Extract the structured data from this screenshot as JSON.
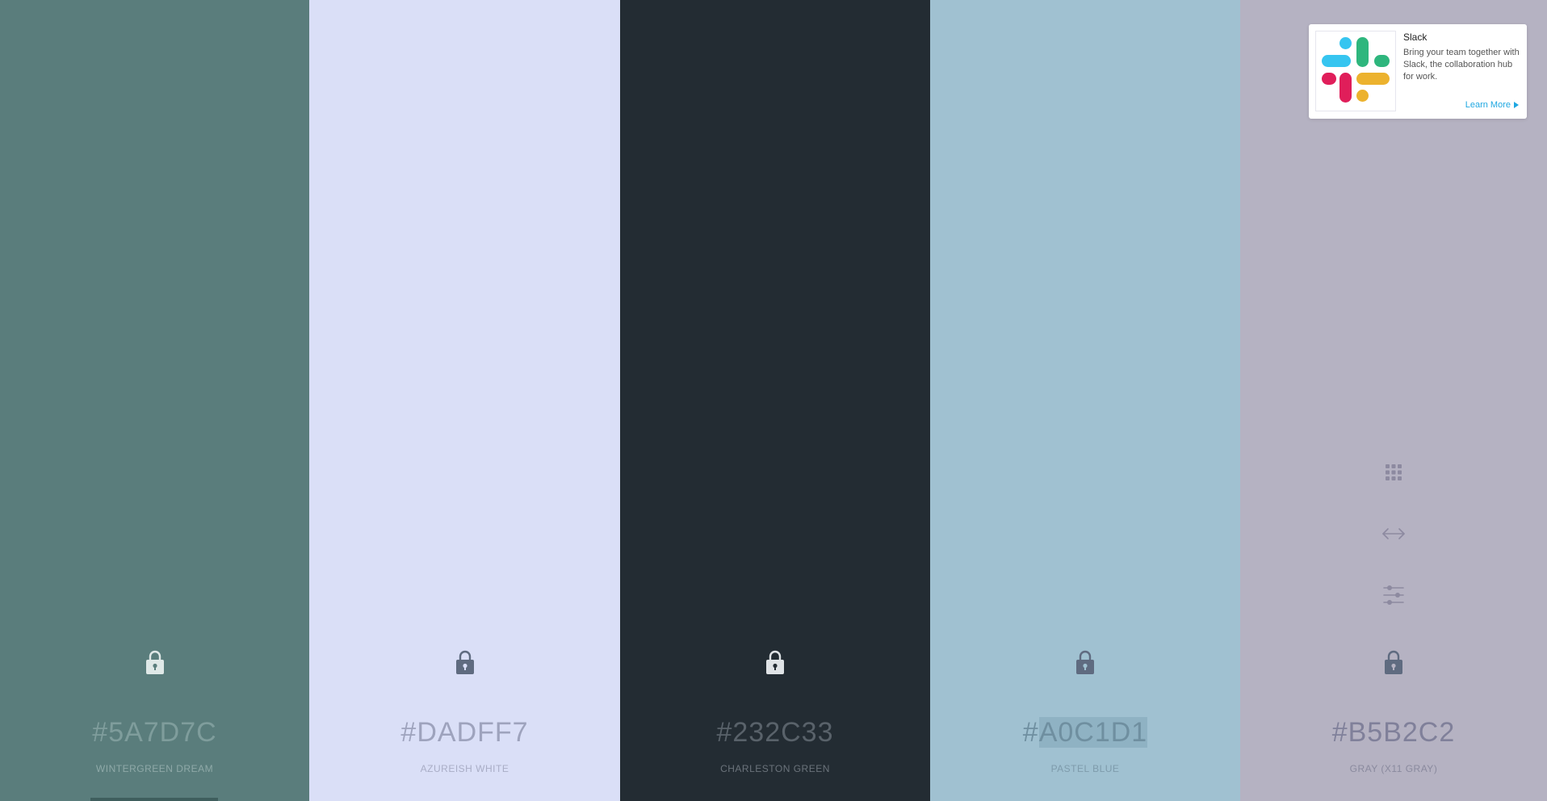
{
  "palette": [
    {
      "hex": "#5A7D7C",
      "hex_prefix": "#",
      "hex_body": "5A7D7C",
      "name": "WINTERGREEN DREAM",
      "bg": "#5A7D7C",
      "text_color": "#7f9d9c",
      "name_color": "#8fa9a8",
      "lock_color": "#dfe8e7"
    },
    {
      "hex": "#DADFF7",
      "hex_prefix": "#",
      "hex_body": "DADFF7",
      "name": "AZUREISH WHITE",
      "bg": "#DADFF7",
      "text_color": "#9ea3bd",
      "name_color": "#a9adc6",
      "lock_color": "#5f6b80"
    },
    {
      "hex": "#232C33",
      "hex_prefix": "#",
      "hex_body": "232C33",
      "name": "CHARLESTON GREEN",
      "bg": "#232C33",
      "text_color": "#59626a",
      "name_color": "#6b737b",
      "lock_color": "#dfe3e6"
    },
    {
      "hex": "#A0C1D1",
      "hex_prefix": "#",
      "hex_body": "A0C1D1",
      "name": "PASTEL BLUE",
      "bg": "#A0C1D1",
      "text_color": "#6f8fa0",
      "name_color": "#7e9bab",
      "lock_color": "#5f6b80",
      "selected": true,
      "selection_bg": "#8fb2c3"
    },
    {
      "hex": "#B5B2C2",
      "hex_prefix": "#",
      "hex_body": "B5B2C2",
      "name": "GRAY (X11 GRAY)",
      "bg": "#B5B2C2",
      "text_color": "#80809a",
      "name_color": "#8a8a9e",
      "lock_color": "#5f6b80"
    }
  ],
  "tools": {
    "icons": [
      "grid-icon",
      "arrows-horizontal-icon",
      "sliders-icon"
    ],
    "color": "#8d8aa0"
  },
  "ad": {
    "title": "Slack",
    "text": "Bring your team together with Slack, the collaboration hub for work.",
    "link": "Learn More",
    "link_color": "#1ea7e1"
  },
  "colors": {
    "slack_blue": "#36C5F0",
    "slack_green": "#2EB67D",
    "slack_red": "#E01E5A",
    "slack_yellow": "#ECB22E"
  }
}
